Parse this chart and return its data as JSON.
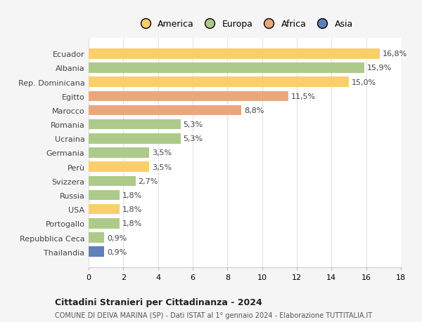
{
  "countries": [
    "Ecuador",
    "Albania",
    "Rep. Dominicana",
    "Egitto",
    "Marocco",
    "Romania",
    "Ucraina",
    "Germania",
    "Perù",
    "Svizzera",
    "Russia",
    "USA",
    "Portogallo",
    "Repubblica Ceca",
    "Thailandia"
  ],
  "values": [
    16.8,
    15.9,
    15.0,
    11.5,
    8.8,
    5.3,
    5.3,
    3.5,
    3.5,
    2.7,
    1.8,
    1.8,
    1.8,
    0.9,
    0.9
  ],
  "continents": [
    "America",
    "Europa",
    "America",
    "Africa",
    "Africa",
    "Europa",
    "Europa",
    "Europa",
    "America",
    "Europa",
    "Europa",
    "America",
    "Europa",
    "Europa",
    "Asia"
  ],
  "colors": {
    "America": "#F9CF6A",
    "Europa": "#AECA8A",
    "Africa": "#E8A87C",
    "Asia": "#6080B8"
  },
  "legend_order": [
    "America",
    "Europa",
    "Africa",
    "Asia"
  ],
  "title": "Cittadini Stranieri per Cittadinanza - 2024",
  "subtitle": "COMUNE DI DEIVA MARINA (SP) - Dati ISTAT al 1° gennaio 2024 - Elaborazione TUTTITALIA.IT",
  "xlim": [
    0,
    18
  ],
  "xticks": [
    0,
    2,
    4,
    6,
    8,
    10,
    12,
    14,
    16,
    18
  ],
  "background_color": "#F5F5F5",
  "bar_background": "#FFFFFF",
  "label_fontsize": 8,
  "ytick_fontsize": 8,
  "xtick_fontsize": 8
}
